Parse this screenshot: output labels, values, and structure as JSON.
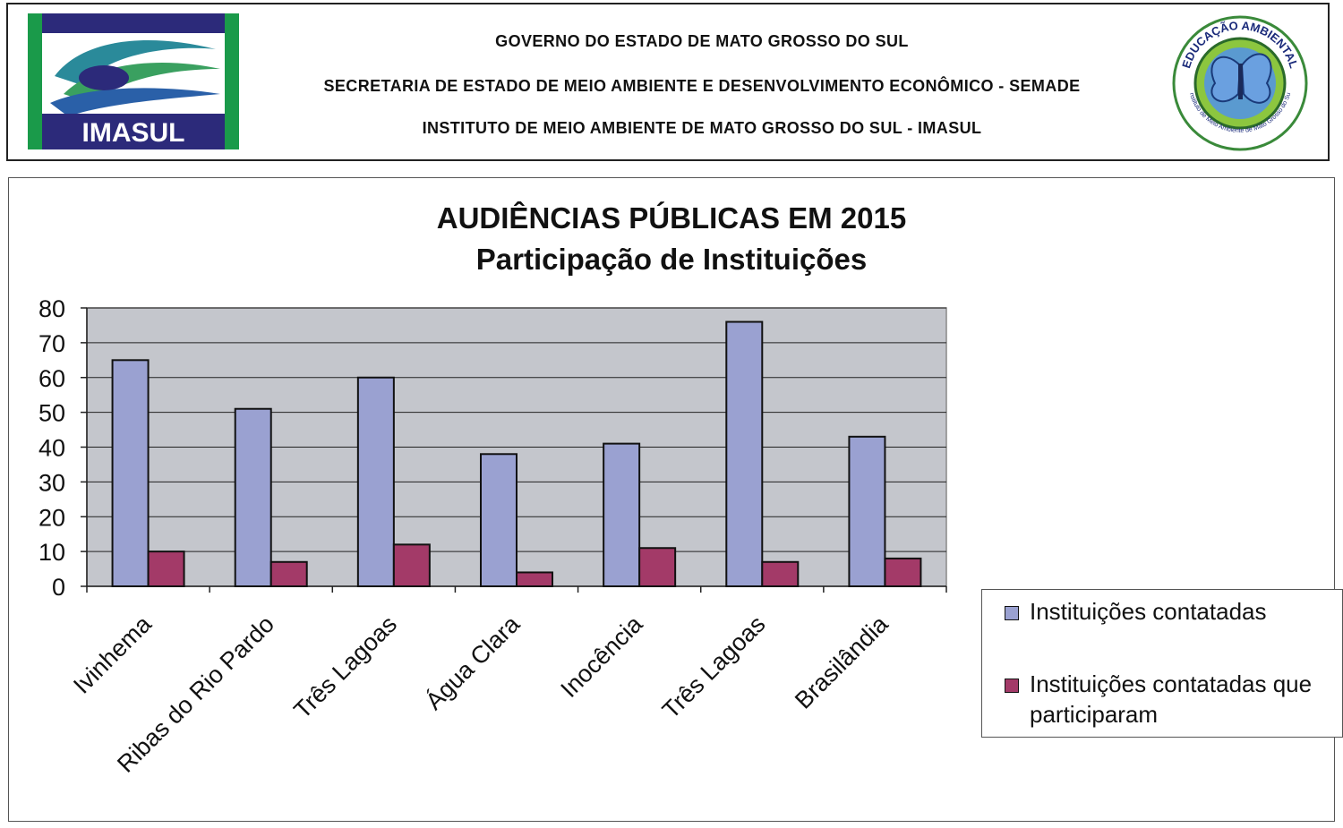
{
  "header": {
    "line1": "GOVERNO DO ESTADO DE MATO GROSSO DO SUL",
    "line2": "SECRETARIA DE ESTADO DE MEIO AMBIENTE E DESENVOLVIMENTO ECONÔMICO - SEMADE",
    "line3": "INSTITUTO DE MEIO AMBIENTE DE MATO GROSSO DO SUL - IMASUL",
    "logo_left_text": "IMASUL",
    "logo_right_text_top": "EDUCAÇÃO AMBIENTAL",
    "logo_right_text_bottom": "Instituto de Meio Ambiente de Mato Grosso do Sul"
  },
  "colors": {
    "series1": "#9aa1d1",
    "series2": "#a33a68",
    "plot_bg": "#c4c6cc",
    "grid": "#222222"
  },
  "chart_data": {
    "type": "bar",
    "title": "AUDIÊNCIAS PÚBLICAS EM 2015",
    "subtitle": "Participação de Instituições",
    "xlabel": "",
    "ylabel": "",
    "ylim": [
      0,
      80
    ],
    "yticks": [
      "0",
      "10",
      "20",
      "30",
      "40",
      "50",
      "60",
      "70",
      "80"
    ],
    "categories": [
      "Ivinhema",
      "Ribas do Rio Pardo",
      "Três Lagoas",
      "Água Clara",
      "Inocência",
      "Três Lagoas",
      "Brasilândia"
    ],
    "series": [
      {
        "name": "Instituições contatadas",
        "values": [
          65,
          51,
          60,
          38,
          41,
          76,
          43
        ]
      },
      {
        "name": "Instituições contatadas que participaram",
        "values": [
          10,
          7,
          12,
          4,
          11,
          7,
          8
        ]
      }
    ],
    "grid": true,
    "legend_position": "right"
  }
}
